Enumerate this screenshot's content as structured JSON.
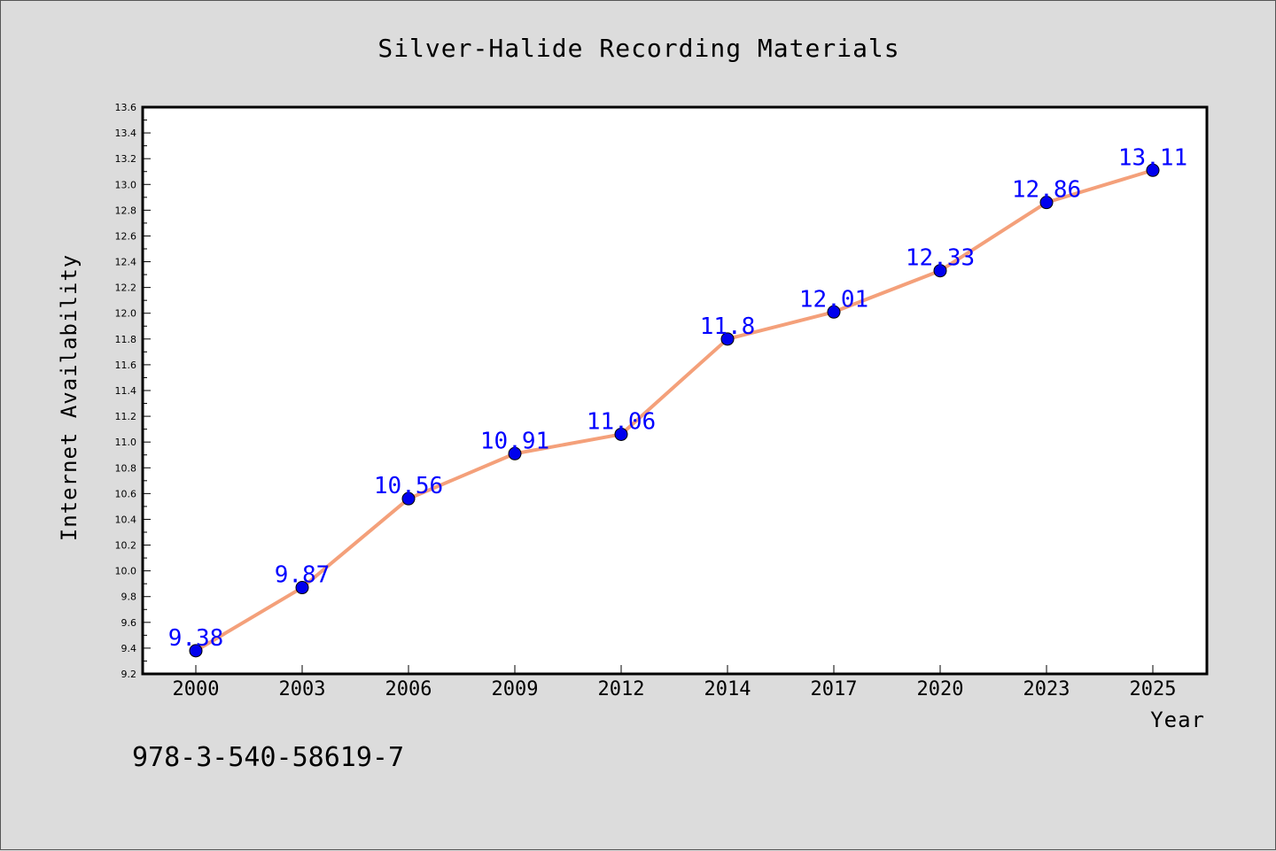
{
  "chart_data": {
    "type": "line",
    "title": "Silver-Halide Recording Materials",
    "xlabel": "Year",
    "ylabel": "Internet Availability",
    "categories": [
      "2000",
      "2003",
      "2006",
      "2009",
      "2012",
      "2014",
      "2017",
      "2020",
      "2023",
      "2025"
    ],
    "series": [
      {
        "values": [
          9.38,
          9.87,
          10.56,
          10.91,
          11.06,
          11.8,
          12.01,
          12.33,
          12.86,
          13.11
        ],
        "data_labels": [
          "9.38",
          "9.87",
          "10.56",
          "10.91",
          "11.06",
          "11.8",
          "12.01",
          "12.33",
          "12.86",
          "13.11"
        ],
        "line_color": "#f4a07a",
        "marker_color": "#0000ee"
      }
    ],
    "ylim": [
      9.2,
      13.6
    ],
    "yticks": [
      "9.2",
      "9.4",
      "9.6",
      "9.8",
      "10.0",
      "10.2",
      "10.4",
      "10.6",
      "10.8",
      "11.0",
      "11.2",
      "11.4",
      "11.6",
      "11.8",
      "12.0",
      "12.2",
      "12.4",
      "12.6",
      "12.8",
      "13.0",
      "13.2",
      "13.4",
      "13.6"
    ],
    "grid": false,
    "legend": "none"
  },
  "footer": {
    "isbn": "978-3-540-58619-7"
  },
  "colors": {
    "background": "#dcdcdc",
    "plot_background": "#ffffff",
    "data_label": "#0000ff"
  }
}
